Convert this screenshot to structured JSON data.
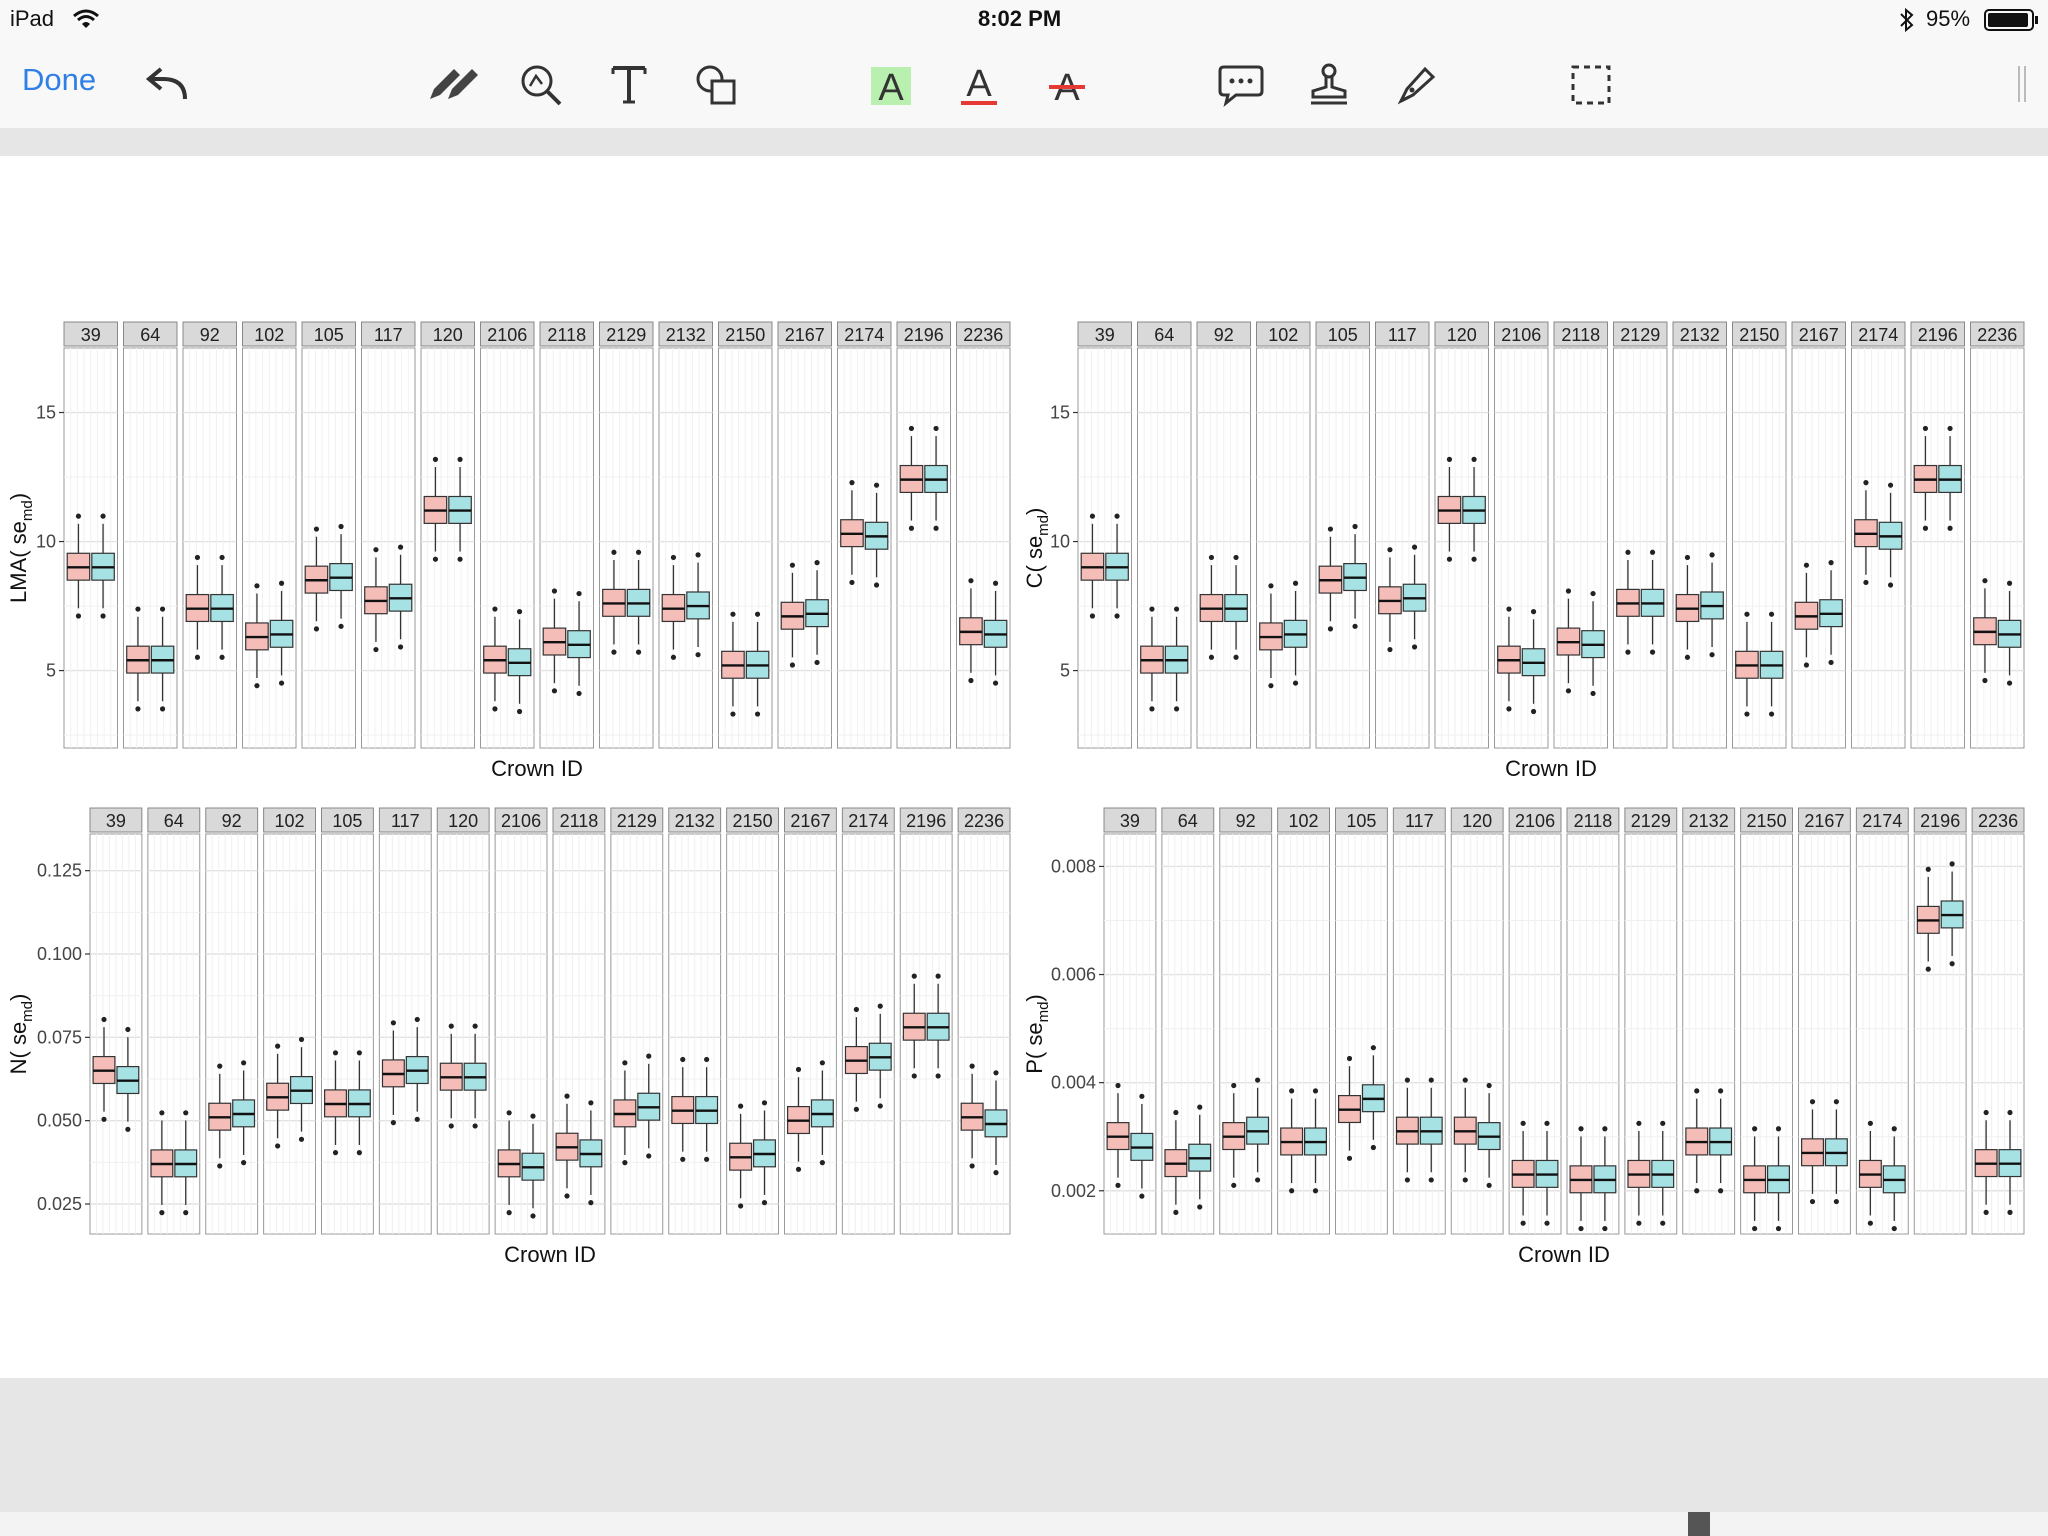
{
  "status_bar": {
    "device": "iPad",
    "time": "8:02 PM",
    "battery": "95%",
    "icons": [
      "wifi-icon",
      "bluetooth-icon",
      "battery-icon"
    ]
  },
  "toolbar": {
    "done_label": "Done",
    "tools": [
      "undo-icon",
      "pen-icon",
      "zoom-lasso-icon",
      "text-tool-icon",
      "shapes-icon",
      "highlight-text-icon",
      "underline-text-icon",
      "strikethrough-text-icon",
      "comment-icon",
      "stamp-icon",
      "signature-icon",
      "selection-icon",
      "grip-icon"
    ],
    "colors": {
      "accent": "#2f7fe6",
      "highlight": "#b9f0b0",
      "underline": "#e53935",
      "strike": "#e53935"
    }
  },
  "figure": {
    "colors": {
      "pink": "#f4bdb8",
      "teal": "#a6e1e4",
      "strip_bg": "#d9d9d9",
      "panel_border": "#999999"
    },
    "panels": [
      {
        "ylabel": "LMA( se",
        "ylabel_sub": "md",
        "ylabel_close": ")",
        "xlabel": "Crown ID",
        "ylim": [
          2,
          17.5
        ],
        "yticks": [
          5,
          10,
          15
        ],
        "ytick_labels": [
          "5",
          "10",
          "15"
        ],
        "groups": [
          "39",
          "64",
          "92",
          "102",
          "105",
          "117",
          "120",
          "2106",
          "2118",
          "2129",
          "2132",
          "2150",
          "2167",
          "2174",
          "2196",
          "2236"
        ],
        "pink_medians": [
          9.0,
          5.4,
          7.4,
          6.3,
          8.5,
          7.7,
          11.2,
          5.4,
          6.1,
          7.6,
          7.4,
          5.2,
          7.1,
          10.3,
          12.4,
          6.5
        ],
        "teal_medians": [
          9.0,
          5.4,
          7.4,
          6.4,
          8.6,
          7.8,
          11.2,
          5.3,
          6.0,
          7.6,
          7.5,
          5.2,
          7.2,
          10.2,
          12.4,
          6.4
        ]
      },
      {
        "ylabel": "C( se",
        "ylabel_sub": "md",
        "ylabel_close": ")",
        "xlabel": "Crown ID",
        "ylim": [
          2,
          17.5
        ],
        "yticks": [
          5,
          10,
          15
        ],
        "ytick_labels": [
          "5",
          "10",
          "15"
        ],
        "groups": [
          "39",
          "64",
          "92",
          "102",
          "105",
          "117",
          "120",
          "2106",
          "2118",
          "2129",
          "2132",
          "2150",
          "2167",
          "2174",
          "2196",
          "2236"
        ],
        "pink_medians": [
          9.0,
          5.4,
          7.4,
          6.3,
          8.5,
          7.7,
          11.2,
          5.4,
          6.1,
          7.6,
          7.4,
          5.2,
          7.1,
          10.3,
          12.4,
          6.5
        ],
        "teal_medians": [
          9.0,
          5.4,
          7.4,
          6.4,
          8.6,
          7.8,
          11.2,
          5.3,
          6.0,
          7.6,
          7.5,
          5.2,
          7.2,
          10.2,
          12.4,
          6.4
        ]
      },
      {
        "ylabel": "N( se",
        "ylabel_sub": "md",
        "ylabel_close": ")",
        "xlabel": "Crown ID",
        "ylim": [
          0.016,
          0.136
        ],
        "yticks": [
          0.025,
          0.05,
          0.075,
          0.1,
          0.125
        ],
        "ytick_labels": [
          "0.025",
          "0.050",
          "0.075",
          "0.100",
          "0.125"
        ],
        "groups": [
          "39",
          "64",
          "92",
          "102",
          "105",
          "117",
          "120",
          "2106",
          "2118",
          "2129",
          "2132",
          "2150",
          "2167",
          "2174",
          "2196",
          "2236"
        ],
        "pink_medians": [
          0.065,
          0.037,
          0.051,
          0.057,
          0.055,
          0.064,
          0.063,
          0.037,
          0.042,
          0.052,
          0.053,
          0.039,
          0.05,
          0.068,
          0.078,
          0.051
        ],
        "teal_medians": [
          0.062,
          0.037,
          0.052,
          0.059,
          0.055,
          0.065,
          0.063,
          0.036,
          0.04,
          0.054,
          0.053,
          0.04,
          0.052,
          0.069,
          0.078,
          0.049
        ]
      },
      {
        "ylabel": "P( se",
        "ylabel_sub": "md",
        "ylabel_close": ")",
        "xlabel": "Crown ID",
        "ylim": [
          0.0012,
          0.0086
        ],
        "yticks": [
          0.002,
          0.004,
          0.006,
          0.008
        ],
        "ytick_labels": [
          "0.002",
          "0.004",
          "0.006",
          "0.008"
        ],
        "groups": [
          "39",
          "64",
          "92",
          "102",
          "105",
          "117",
          "120",
          "2106",
          "2118",
          "2129",
          "2132",
          "2150",
          "2167",
          "2174",
          "2196",
          "2236"
        ],
        "pink_medians": [
          0.003,
          0.0025,
          0.003,
          0.0029,
          0.0035,
          0.0031,
          0.0031,
          0.0023,
          0.0022,
          0.0023,
          0.0029,
          0.0022,
          0.0027,
          0.0023,
          0.007,
          0.0025
        ],
        "teal_medians": [
          0.0028,
          0.0026,
          0.0031,
          0.0029,
          0.0037,
          0.0031,
          0.003,
          0.0023,
          0.0022,
          0.0023,
          0.0029,
          0.0022,
          0.0027,
          0.0022,
          0.0071,
          0.0025
        ]
      }
    ]
  }
}
